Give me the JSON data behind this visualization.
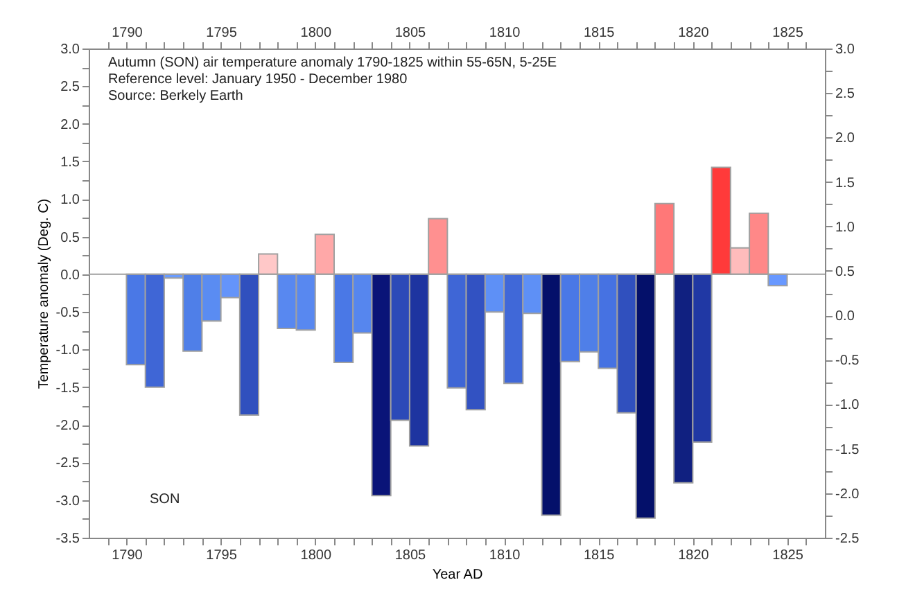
{
  "chart_data": {
    "type": "histogram",
    "annotations": [
      "Autumn (SON) air temperature anomaly 1790-1825 within 55-65N, 5-25E",
      "Reference level: January 1950 - December 1980",
      "Source: Berkely Earth",
      "SON"
    ],
    "xlabel": "Year AD",
    "ylabel": "Temperature anomaly (Deg. C)",
    "bins": [
      1790,
      1791,
      1792,
      1793,
      1794,
      1795,
      1796,
      1797,
      1798,
      1799,
      1800,
      1801,
      1802,
      1803,
      1804,
      1805,
      1806,
      1807,
      1808,
      1809,
      1810,
      1811,
      1812,
      1813,
      1814,
      1815,
      1816,
      1817,
      1818,
      1819,
      1820,
      1821,
      1822,
      1823,
      1824,
      1825
    ],
    "values": [
      -1.2,
      -1.5,
      -0.05,
      -1.02,
      -0.62,
      -0.31,
      -1.87,
      0.27,
      -0.72,
      -0.74,
      0.53,
      -1.17,
      -0.78,
      -2.94,
      -1.94,
      -2.28,
      0.74,
      -1.51,
      -1.8,
      -0.5,
      -1.45,
      -0.52,
      -3.2,
      -1.16,
      -1.03,
      -1.25,
      -1.84,
      -3.24,
      0.94,
      -2.77,
      -2.23,
      1.42,
      0.35,
      0.81,
      -0.15
    ],
    "colors": [
      "#4a78e6",
      "#3f66d6",
      "#6a9cff",
      "#4f7fe8",
      "#5a8cf2",
      "#6494fa",
      "#3050be",
      "#ffc8c8",
      "#5888f0",
      "#5888f0",
      "#ffa8a8",
      "#4a78e6",
      "#5686ee",
      "#0a1478",
      "#2c4ab8",
      "#1e34a0",
      "#ff9090",
      "#3f66d6",
      "#3252c2",
      "#5e90f6",
      "#4068d8",
      "#5e90f6",
      "#04106a",
      "#4a78e6",
      "#4f7fe8",
      "#4672e2",
      "#3050be",
      "#04106a",
      "#ff7878",
      "#102080",
      "#2038a4",
      "#ff3a3a",
      "#ffbcbc",
      "#ff8888",
      "#6898ff"
    ],
    "xlim": [
      1788,
      1827
    ],
    "xticks": [
      {
        "value": 1789,
        "label": null
      },
      1790,
      {
        "value": 1791,
        "label": null
      },
      {
        "value": 1792,
        "label": null
      },
      {
        "value": 1793,
        "label": null
      },
      {
        "value": 1794,
        "label": null
      },
      1795,
      {
        "value": 1796,
        "label": null
      },
      {
        "value": 1797,
        "label": null
      },
      {
        "value": 1798,
        "label": null
      },
      {
        "value": 1799,
        "label": null
      },
      1800,
      {
        "value": 1801,
        "label": null
      },
      {
        "value": 1802,
        "label": null
      },
      {
        "value": 1803,
        "label": null
      },
      {
        "value": 1804,
        "label": null
      },
      1805,
      {
        "value": 1806,
        "label": null
      },
      {
        "value": 1807,
        "label": null
      },
      {
        "value": 1808,
        "label": null
      },
      {
        "value": 1809,
        "label": null
      },
      1810,
      {
        "value": 1811,
        "label": null
      },
      {
        "value": 1812,
        "label": null
      },
      {
        "value": 1813,
        "label": null
      },
      {
        "value": 1814,
        "label": null
      },
      1815,
      {
        "value": 1816,
        "label": null
      },
      {
        "value": 1817,
        "label": null
      },
      {
        "value": 1818,
        "label": null
      },
      {
        "value": 1819,
        "label": null
      },
      1820,
      {
        "value": 1821,
        "label": null
      },
      {
        "value": 1822,
        "label": null
      },
      {
        "value": 1823,
        "label": null
      },
      {
        "value": 1824,
        "label": null
      },
      1825,
      {
        "value": 1826,
        "label": null
      }
    ],
    "x2lim": [
      1788,
      1827
    ],
    "x2ticks": [
      {
        "value": 1789,
        "label": null
      },
      1790,
      {
        "value": 1791,
        "label": null
      },
      {
        "value": 1792,
        "label": null
      },
      {
        "value": 1793,
        "label": null
      },
      {
        "value": 1794,
        "label": null
      },
      1795,
      {
        "value": 1796,
        "label": null
      },
      {
        "value": 1797,
        "label": null
      },
      {
        "value": 1798,
        "label": null
      },
      {
        "value": 1799,
        "label": null
      },
      1800,
      {
        "value": 1801,
        "label": null
      },
      {
        "value": 1802,
        "label": null
      },
      {
        "value": 1803,
        "label": null
      },
      {
        "value": 1804,
        "label": null
      },
      1805,
      {
        "value": 1806,
        "label": null
      },
      {
        "value": 1807,
        "label": null
      },
      {
        "value": 1808,
        "label": null
      },
      {
        "value": 1809,
        "label": null
      },
      1810,
      {
        "value": 1811,
        "label": null
      },
      {
        "value": 1812,
        "label": null
      },
      {
        "value": 1813,
        "label": null
      },
      {
        "value": 1814,
        "label": null
      },
      1815,
      {
        "value": 1816,
        "label": null
      },
      {
        "value": 1817,
        "label": null
      },
      {
        "value": 1818,
        "label": null
      },
      {
        "value": 1819,
        "label": null
      },
      1820,
      {
        "value": 1821,
        "label": null
      },
      {
        "value": 1822,
        "label": null
      },
      {
        "value": 1823,
        "label": null
      },
      {
        "value": 1824,
        "label": null
      },
      1825,
      {
        "value": 1826,
        "label": null
      }
    ],
    "ylim": [
      -3.5,
      3.0
    ],
    "yticks": [
      -3.5,
      {
        "value": -3.25,
        "label": null
      },
      {
        "value": -3,
        "label": "-3.0"
      },
      {
        "value": -2.75,
        "label": null
      },
      -2.5,
      {
        "value": -2.25,
        "label": null
      },
      {
        "value": -2,
        "label": "-2.0"
      },
      {
        "value": -1.75,
        "label": null
      },
      -1.5,
      {
        "value": -1.25,
        "label": null
      },
      {
        "value": -1,
        "label": "-1.0"
      },
      {
        "value": -0.75,
        "label": null
      },
      -0.5,
      {
        "value": -0.25,
        "label": null
      },
      {
        "value": 0,
        "label": "0.0"
      },
      {
        "value": 0.25,
        "label": null
      },
      0.5,
      {
        "value": 0.75,
        "label": null
      },
      {
        "value": 1,
        "label": "1.0"
      },
      {
        "value": 1.25,
        "label": null
      },
      1.5,
      {
        "value": 1.75,
        "label": null
      },
      {
        "value": 2,
        "label": "2.0"
      },
      {
        "value": 2.25,
        "label": null
      },
      2.5,
      {
        "value": 2.75,
        "label": null
      },
      {
        "value": 3,
        "label": "3.0"
      }
    ],
    "y2lim": [
      -2.5,
      3.0
    ],
    "y2ticks": [
      -2.5,
      {
        "value": -2.25,
        "label": null
      },
      {
        "value": -2,
        "label": "-2.0"
      },
      {
        "value": -1.75,
        "label": null
      },
      -1.5,
      {
        "value": -1.25,
        "label": null
      },
      {
        "value": -1,
        "label": "-1.0"
      },
      {
        "value": -0.75,
        "label": null
      },
      -0.5,
      {
        "value": -0.25,
        "label": null
      },
      {
        "value": 0,
        "label": "0.0"
      },
      {
        "value": 0.25,
        "label": null
      },
      0.5,
      {
        "value": 0.75,
        "label": null
      },
      {
        "value": 1,
        "label": "1.0"
      },
      {
        "value": 1.25,
        "label": null
      },
      1.5,
      {
        "value": 1.75,
        "label": null
      },
      {
        "value": 2,
        "label": "2.0"
      },
      {
        "value": 2.25,
        "label": null
      },
      2.5,
      {
        "value": 2.75,
        "label": null
      },
      {
        "value": 3,
        "label": "3.0"
      }
    ],
    "ref_lines": [
      {
        "axis": "y",
        "value": 0,
        "color": "#a0a0a0"
      }
    ],
    "grid": false
  }
}
